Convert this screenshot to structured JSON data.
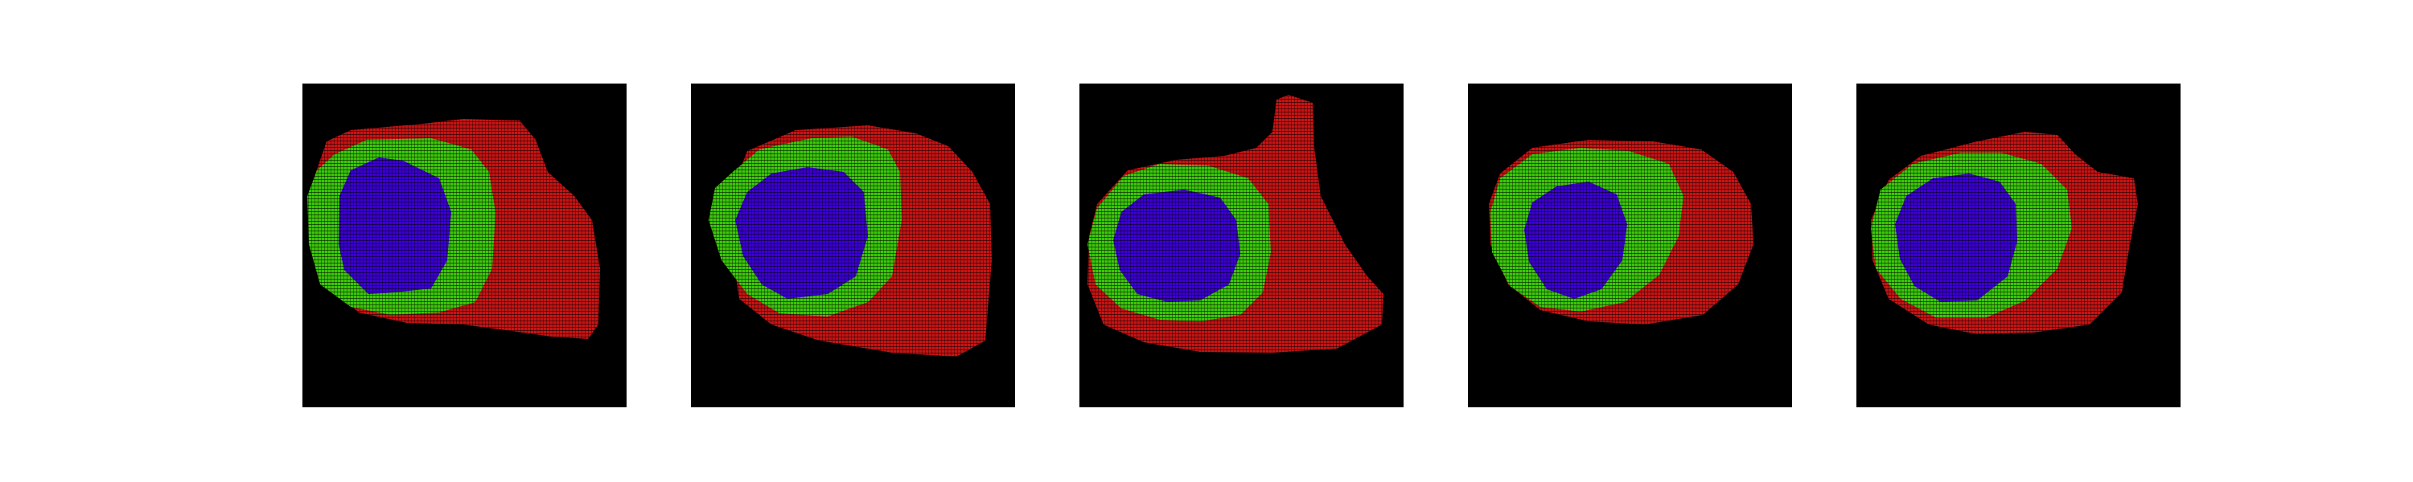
{
  "figure": {
    "panel_count": 5,
    "colors": {
      "background": "#000000",
      "outer_region": "#c81414",
      "middle_region": "#3cc80a",
      "inner_region": "#3c00d2",
      "grid_line": "#000000"
    },
    "regions": [
      "outer_region",
      "middle_region",
      "inner_region"
    ]
  }
}
